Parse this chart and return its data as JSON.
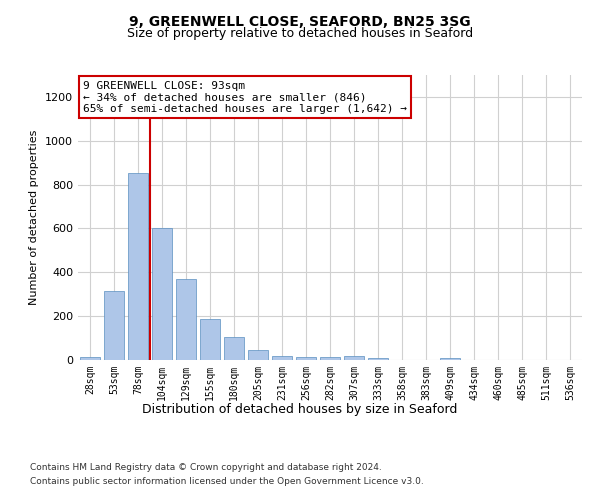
{
  "title_line1": "9, GREENWELL CLOSE, SEAFORD, BN25 3SG",
  "title_line2": "Size of property relative to detached houses in Seaford",
  "xlabel": "Distribution of detached houses by size in Seaford",
  "ylabel": "Number of detached properties",
  "categories": [
    "28sqm",
    "53sqm",
    "78sqm",
    "104sqm",
    "129sqm",
    "155sqm",
    "180sqm",
    "205sqm",
    "231sqm",
    "256sqm",
    "282sqm",
    "307sqm",
    "333sqm",
    "358sqm",
    "383sqm",
    "409sqm",
    "434sqm",
    "460sqm",
    "485sqm",
    "511sqm",
    "536sqm"
  ],
  "values": [
    15,
    315,
    855,
    600,
    370,
    185,
    105,
    45,
    20,
    15,
    15,
    20,
    10,
    0,
    0,
    10,
    0,
    0,
    0,
    0,
    0
  ],
  "bar_color": "#aec6e8",
  "bar_edge_color": "#5a8fc0",
  "property_line_x": 2.5,
  "annotation_text": "9 GREENWELL CLOSE: 93sqm\n← 34% of detached houses are smaller (846)\n65% of semi-detached houses are larger (1,642) →",
  "annotation_box_color": "#cc0000",
  "vline_color": "#cc0000",
  "grid_color": "#d0d0d0",
  "ylim": [
    0,
    1300
  ],
  "yticks": [
    0,
    200,
    400,
    600,
    800,
    1000,
    1200
  ],
  "footer_line1": "Contains HM Land Registry data © Crown copyright and database right 2024.",
  "footer_line2": "Contains public sector information licensed under the Open Government Licence v3.0.",
  "background_color": "#ffffff",
  "title1_fontsize": 10,
  "title2_fontsize": 9,
  "ylabel_fontsize": 8,
  "xlabel_fontsize": 9,
  "ytick_fontsize": 8,
  "xtick_fontsize": 7,
  "annot_fontsize": 8,
  "footer_fontsize": 6.5
}
